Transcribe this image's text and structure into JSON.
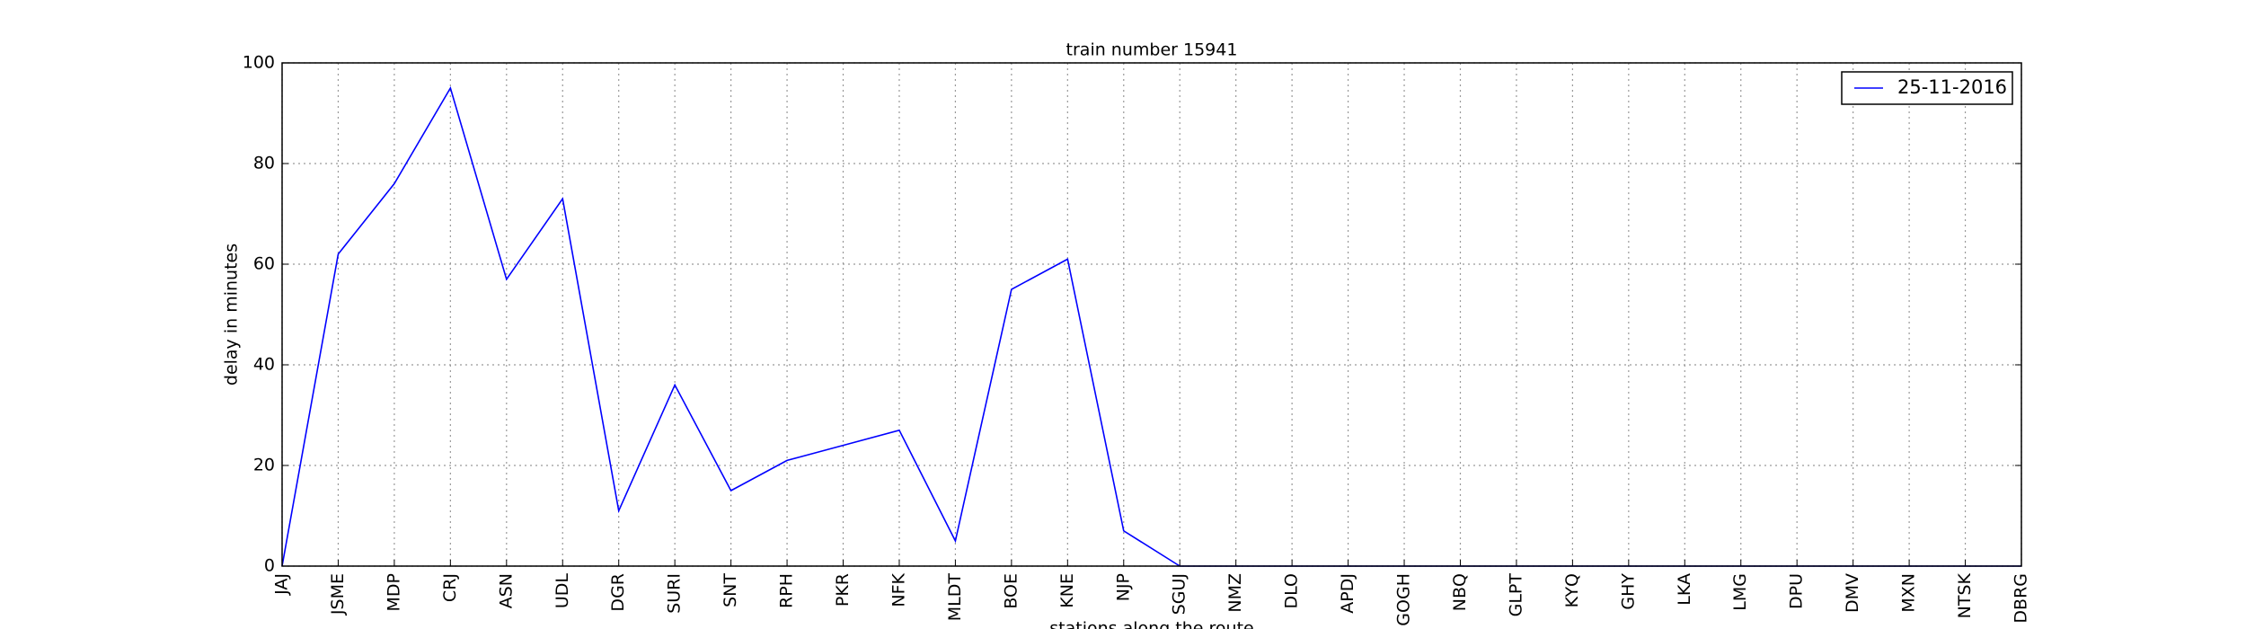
{
  "chart_data": {
    "type": "line",
    "title": "train number 15941",
    "xlabel": "stations along the route",
    "ylabel": "delay in minutes",
    "categories": [
      "JAJ",
      "JSME",
      "MDP",
      "CRJ",
      "ASN",
      "UDL",
      "DGR",
      "SURI",
      "SNT",
      "RPH",
      "PKR",
      "NFK",
      "MLDT",
      "BOE",
      "KNE",
      "NJP",
      "SGUJ",
      "NMZ",
      "DLO",
      "APDJ",
      "GOGH",
      "NBQ",
      "GLPT",
      "KYQ",
      "GHY",
      "LKA",
      "LMG",
      "DPU",
      "DMV",
      "MXN",
      "NTSK",
      "DBRG"
    ],
    "series": [
      {
        "name": "25-11-2016",
        "color": "#0000ff",
        "values": [
          0,
          62,
          76,
          95,
          57,
          73,
          11,
          36,
          15,
          21,
          24,
          27,
          5,
          55,
          61,
          7,
          0,
          0,
          0,
          0,
          0,
          0,
          0,
          0,
          0,
          0,
          0,
          0,
          0,
          0,
          0,
          0
        ]
      }
    ],
    "ylim": [
      0,
      100
    ],
    "yticks": [
      0,
      20,
      40,
      60,
      80,
      100
    ],
    "grid": true,
    "legend": "upper right"
  }
}
